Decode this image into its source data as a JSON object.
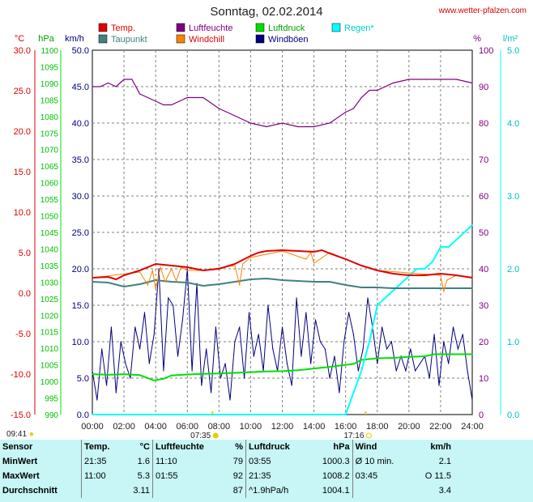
{
  "title": "Sonntag, 02.02.2014",
  "source": "www.wetter-pfalzen.com",
  "legend": [
    {
      "label": "Temp.",
      "color": "#e00000"
    },
    {
      "label": "Luftfeuchte",
      "color": "#800080"
    },
    {
      "label": "Luftdruck",
      "color": "#00e000"
    },
    {
      "label": "Regen*",
      "color": "#00ffff"
    },
    {
      "label": "Taupunkt",
      "color": "#408080"
    },
    {
      "label": "Windchill",
      "color": "#ff8000"
    },
    {
      "label": "Windböen",
      "color": "#000080"
    }
  ],
  "axes": {
    "temp": {
      "unit": "°C",
      "ticks": [
        "30.0",
        "25.0",
        "20.0",
        "15.0",
        "10.0",
        "5.0",
        "0.0",
        "-5.0",
        "-10.0",
        "-15.0"
      ],
      "range": [
        -15,
        30
      ]
    },
    "pressure": {
      "unit": "hPa",
      "range": [
        990,
        1100
      ],
      "ticks": [
        "1100",
        "1095",
        "1090",
        "1085",
        "1080",
        "1075",
        "1070",
        "1065",
        "1060",
        "1055",
        "1050",
        "1045",
        "1040",
        "1035",
        "1030",
        "1025",
        "1020",
        "1015",
        "1010",
        "1005",
        "1000",
        "995",
        "990"
      ]
    },
    "wind": {
      "unit": "km/h",
      "range": [
        0,
        50
      ],
      "ticks": [
        "50.0",
        "45.0",
        "40.0",
        "35.0",
        "30.0",
        "25.0",
        "20.0",
        "15.0",
        "10.0",
        "5.0",
        "0.0"
      ]
    },
    "humidity": {
      "unit": "%",
      "range": [
        0,
        100
      ],
      "ticks": [
        "100",
        "90",
        "80",
        "70",
        "60",
        "50",
        "40",
        "30",
        "20",
        "10",
        "0"
      ]
    },
    "rain": {
      "unit": "l/m²",
      "range": [
        0,
        5
      ],
      "ticks": [
        "5.0",
        "4.0",
        "3.0",
        "2.0",
        "1.0",
        "0.0"
      ]
    },
    "x": {
      "ticks": [
        "00:00",
        "02:00",
        "04:00",
        "06:00",
        "08:00",
        "10:00",
        "12:00",
        "14:00",
        "16:00",
        "18:00",
        "20:00",
        "22:00",
        "24:00"
      ]
    }
  },
  "sun": {
    "moonset": "09:41",
    "sunrise": "07:35",
    "sunset": "17:16"
  },
  "chart_data": {
    "type": "line",
    "title": "Sonntag, 02.02.2014",
    "x_unit": "hours",
    "series": [
      {
        "name": "Temp.",
        "axis": "temp",
        "x": [
          0,
          1,
          1.5,
          2,
          3,
          4,
          5,
          6,
          7,
          8,
          9,
          10,
          10.5,
          11,
          12,
          13,
          14,
          14.5,
          15,
          16,
          17,
          18,
          19,
          20,
          21,
          22,
          23,
          24
        ],
        "y": [
          1.9,
          2.0,
          1.7,
          2.2,
          2.8,
          3.6,
          3.4,
          3.2,
          2.8,
          3.0,
          3.6,
          4.6,
          5.0,
          5.2,
          5.3,
          5.2,
          5.1,
          5.3,
          4.9,
          4.2,
          3.4,
          2.8,
          2.4,
          2.2,
          2.2,
          2.4,
          2.2,
          1.9
        ]
      },
      {
        "name": "Taupunkt",
        "axis": "temp",
        "x": [
          0,
          1,
          2,
          3,
          4,
          5,
          6,
          7,
          8,
          9,
          10,
          11,
          12,
          13,
          14,
          15,
          16,
          17,
          18,
          19,
          20,
          21,
          22,
          23,
          24
        ],
        "y": [
          1.4,
          1.3,
          0.8,
          1.1,
          1.6,
          1.4,
          1.3,
          0.9,
          1.1,
          1.4,
          1.7,
          1.8,
          1.6,
          1.5,
          1.4,
          1.4,
          1.0,
          0.7,
          0.7,
          0.6,
          0.6,
          0.6,
          0.6,
          0.6,
          0.6
        ]
      },
      {
        "name": "Windchill",
        "axis": "temp",
        "x": [
          0,
          3,
          3.5,
          3.8,
          4,
          4.3,
          4.6,
          5,
          5.3,
          5.6,
          6,
          7,
          9,
          9.3,
          9.5,
          10,
          12,
          13.5,
          13.8,
          14,
          15,
          16,
          17,
          18,
          22,
          22.2,
          22.4,
          23,
          24
        ],
        "y": [
          1.9,
          2.6,
          1.0,
          2.8,
          0.5,
          3.2,
          1.4,
          3.0,
          1.5,
          3.2,
          2.8,
          2.8,
          3.4,
          1.0,
          3.6,
          4.4,
          5.2,
          4.2,
          5.0,
          3.7,
          5.0,
          4.2,
          3.4,
          2.8,
          2.2,
          0.2,
          1.6,
          2.2,
          1.9
        ]
      },
      {
        "name": "Luftfeuchte",
        "axis": "humidity",
        "x": [
          0,
          0.5,
          1,
          1.5,
          2,
          2.5,
          3,
          3.5,
          4,
          4.5,
          5,
          5.5,
          6,
          7,
          8,
          9,
          10,
          11,
          12,
          13,
          14,
          15,
          16,
          16.5,
          17,
          17.5,
          18,
          19,
          20,
          21,
          22,
          23,
          24
        ],
        "y": [
          90,
          90,
          91,
          90,
          92,
          92,
          88,
          87,
          86,
          85,
          85,
          86,
          87,
          87,
          84,
          82,
          80,
          79,
          80,
          79,
          79,
          80,
          83,
          84,
          87,
          89,
          89,
          91,
          92,
          92,
          92,
          92,
          91
        ]
      },
      {
        "name": "Luftdruck",
        "axis": "pressure",
        "x": [
          0,
          1,
          2,
          3,
          3.9,
          4.5,
          5,
          6,
          7,
          8,
          9,
          10,
          11,
          12,
          13,
          14,
          15,
          16,
          16.5,
          17,
          18,
          19,
          20,
          21,
          21.6,
          22,
          23,
          24
        ],
        "y": [
          1002.2,
          1002.0,
          1002.2,
          1001.9,
          1000.3,
          1000.8,
          1001.8,
          1002.1,
          1002.3,
          1002.4,
          1002.6,
          1002.8,
          1003.0,
          1003.1,
          1003.4,
          1003.9,
          1004.4,
          1005.0,
          1005.3,
          1006.5,
          1007.0,
          1007.1,
          1007.4,
          1007.6,
          1008.2,
          1008.2,
          1008.2,
          1008.2
        ]
      },
      {
        "name": "Regen*",
        "axis": "rain",
        "x": [
          0,
          16,
          16.5,
          17,
          17.5,
          18,
          18.5,
          19,
          19.5,
          20,
          20.5,
          21,
          21.5,
          22,
          22.5,
          23,
          23.5,
          24
        ],
        "y": [
          0,
          0,
          0.3,
          0.6,
          1.0,
          1.5,
          1.6,
          1.7,
          1.8,
          1.9,
          2.0,
          2.0,
          2.1,
          2.3,
          2.3,
          2.4,
          2.5,
          2.6
        ]
      },
      {
        "name": "Windböen",
        "axis": "wind",
        "x": [
          0,
          0.3,
          0.6,
          0.9,
          1.2,
          1.5,
          1.8,
          2.1,
          2.4,
          2.7,
          3,
          3.3,
          3.6,
          3.9,
          4.2,
          4.5,
          4.8,
          5.1,
          5.4,
          5.7,
          6,
          6.3,
          6.6,
          6.9,
          7.2,
          7.5,
          7.8,
          8.1,
          8.4,
          8.7,
          9,
          9.3,
          9.6,
          9.9,
          10.2,
          10.5,
          10.8,
          11.1,
          11.4,
          11.7,
          12,
          12.3,
          12.6,
          12.9,
          13.2,
          13.5,
          13.8,
          14.1,
          14.4,
          14.7,
          15,
          15.3,
          15.6,
          15.9,
          16.2,
          16.5,
          16.8,
          17.1,
          17.4,
          17.7,
          18,
          18.3,
          18.6,
          18.9,
          19.2,
          19.5,
          19.8,
          20.1,
          20.4,
          20.7,
          21,
          21.3,
          21.6,
          21.9,
          22.2,
          22.5,
          22.8,
          23.1,
          23.4,
          23.7,
          24
        ],
        "y": [
          6,
          2,
          9,
          4,
          12,
          3,
          10,
          7,
          5,
          12,
          9,
          14,
          7,
          11,
          20,
          6,
          16,
          15,
          8,
          13,
          20,
          6,
          18,
          4,
          9,
          3,
          12,
          5,
          7,
          2,
          10,
          12,
          5,
          14,
          8,
          11,
          6,
          15,
          9,
          6,
          12,
          7,
          4,
          16,
          8,
          14,
          7,
          13,
          10,
          9,
          5,
          8,
          3,
          10,
          14,
          11,
          6,
          9,
          16,
          12,
          7,
          12,
          9,
          10,
          6,
          8,
          6,
          9,
          6,
          7,
          8,
          5,
          11,
          4,
          10,
          7,
          12,
          9,
          11,
          6,
          2
        ]
      }
    ]
  },
  "table": {
    "headers": {
      "sensor": "Sensor",
      "temp": "Temp.",
      "temp_unit": "°C",
      "hum": "Luftfeuchte",
      "hum_unit": "%",
      "press": "Luftdruck",
      "press_unit": "hPa",
      "wind": "Wind",
      "wind_unit": "km/h"
    },
    "rows": [
      {
        "label": "MinWert",
        "t_time": "21:35",
        "t_val": "1.6",
        "h_time": "11:10",
        "h_val": "79",
        "p_time": "03:55",
        "p_val": "1000.3",
        "w_time": "Ø 10 min.",
        "w_val": "2.1"
      },
      {
        "label": "MaxWert",
        "t_time": "11:00",
        "t_val": "5.3",
        "h_time": "01:55",
        "h_val": "92",
        "p_time": "21:35",
        "p_val": "1008.2",
        "w_time": "03:45",
        "w_val": "O 11.5"
      },
      {
        "label": "Durchschnitt",
        "t_time": "",
        "t_val": "3.11",
        "h_time": "",
        "h_val": "87",
        "p_time": "^1.9hPa/h",
        "p_val": "1004.1",
        "w_time": "",
        "w_val": "3.4"
      }
    ]
  }
}
